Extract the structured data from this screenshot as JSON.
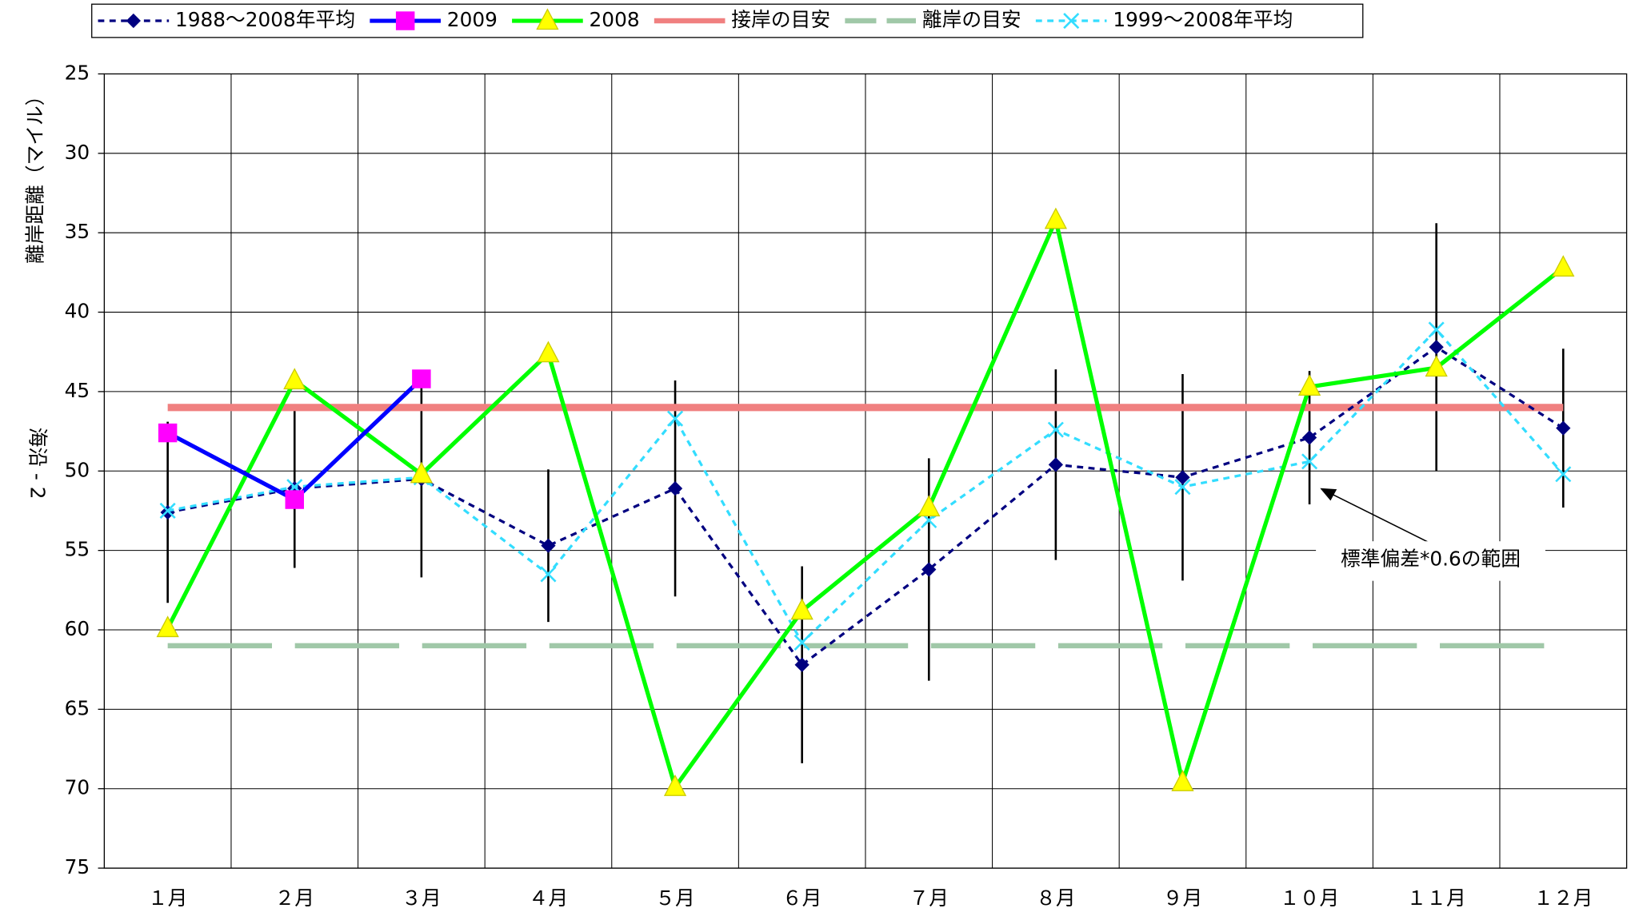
{
  "chart_data": {
    "type": "line",
    "y_label": "離岸距離（マイル）",
    "y_label_2": "海沿 - 2",
    "annotation": "標準偏差*0.6の範囲",
    "categories": [
      "１月",
      "２月",
      "３月",
      "４月",
      "５月",
      "６月",
      "７月",
      "８月",
      "９月",
      "１０月",
      "１１月",
      "１２月"
    ],
    "ylim": [
      25,
      75
    ],
    "inverted": true,
    "yticks": [
      25,
      30,
      35,
      40,
      45,
      50,
      55,
      60,
      65,
      70,
      75
    ],
    "grid": true,
    "series": [
      {
        "name": "1988～2008年平均",
        "color": "#000080",
        "marker": "diamond",
        "marker_color": "#000080",
        "dash": "short",
        "values": [
          52.6,
          51.1,
          50.5,
          54.7,
          51.1,
          62.2,
          56.2,
          49.6,
          50.4,
          47.9,
          42.2,
          47.3
        ],
        "errors": [
          5.7,
          5.0,
          6.2,
          4.8,
          6.8,
          6.2,
          7.0,
          6.0,
          6.5,
          4.2,
          7.8,
          5.0
        ]
      },
      {
        "name": "2009",
        "color": "#0000ff",
        "marker": "square",
        "marker_color": "#ff00ff",
        "dash": "solid",
        "values": [
          47.6,
          51.8,
          44.2,
          null,
          null,
          null,
          null,
          null,
          null,
          null,
          null,
          null
        ]
      },
      {
        "name": "2008",
        "color": "#00ff00",
        "marker": "triangle",
        "marker_color": "#ffff00",
        "dash": "solid",
        "values": [
          59.9,
          44.3,
          50.2,
          42.6,
          69.9,
          58.8,
          52.3,
          34.2,
          69.6,
          44.7,
          43.5,
          37.2
        ]
      },
      {
        "name": "接岸の目安",
        "color": "#f08080",
        "marker": "none",
        "dash": "thick",
        "values": [
          46,
          46,
          46,
          46,
          46,
          46,
          46,
          46,
          46,
          46,
          46,
          46
        ]
      },
      {
        "name": "離岸の目安",
        "color": "#a0c8a8",
        "marker": "none",
        "dash": "long",
        "values": [
          61,
          61,
          61,
          61,
          61,
          61,
          61,
          61,
          61,
          61,
          61,
          61
        ]
      },
      {
        "name": "1999～2008年平均",
        "color": "#33ddff",
        "marker": "x",
        "marker_color": "#33ddff",
        "dash": "short",
        "values": [
          52.5,
          51.0,
          50.4,
          56.5,
          46.7,
          60.8,
          53.1,
          47.4,
          51.0,
          49.4,
          41.1,
          50.2
        ]
      }
    ]
  }
}
